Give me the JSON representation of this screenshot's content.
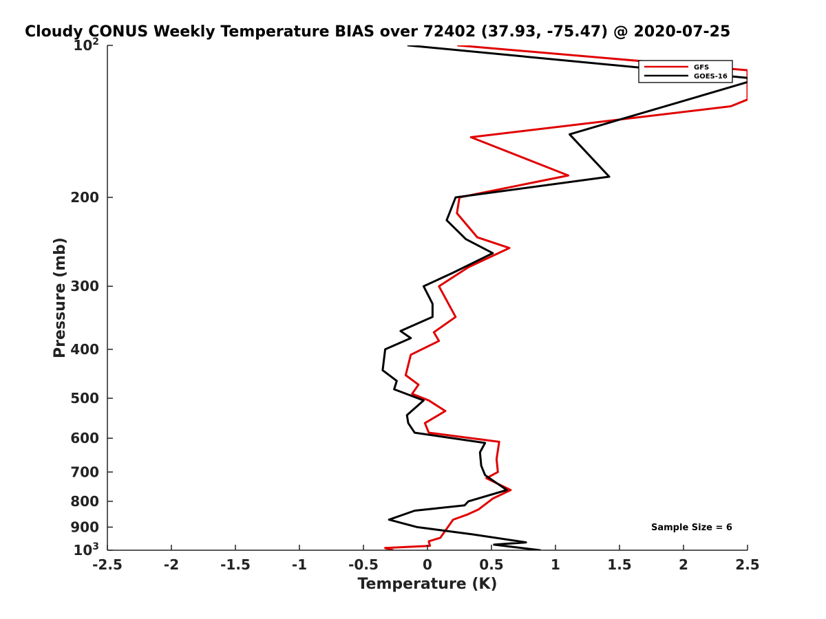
{
  "chart_data": {
    "type": "line",
    "title": "Cloudy CONUS Weekly Temperature BIAS over 72402 (37.93, -75.47) @ 2020-07-25",
    "xlabel": "Temperature (K)",
    "ylabel": "Pressure (mb)",
    "xlim": [
      -2.5,
      2.5
    ],
    "ylim": [
      100,
      1000
    ],
    "y_scale": "log",
    "y_reversed": true,
    "x_ticks": [
      "-2.5",
      "-2",
      "-1.5",
      "-1",
      "-0.5",
      "0",
      "0.5",
      "1",
      "1.5",
      "2",
      "2.5"
    ],
    "y_ticks": [
      {
        "value": 100,
        "base": "10",
        "exp": "2"
      },
      {
        "value": 200,
        "label": "200"
      },
      {
        "value": 300,
        "label": "300"
      },
      {
        "value": 400,
        "label": "400"
      },
      {
        "value": 500,
        "label": "500"
      },
      {
        "value": 600,
        "label": "600"
      },
      {
        "value": 700,
        "label": "700"
      },
      {
        "value": 800,
        "label": "800"
      },
      {
        "value": 900,
        "label": "900"
      },
      {
        "value": 1000,
        "base": "10",
        "exp": "3"
      }
    ],
    "legend_position": "top-right",
    "annotation": "Sample Size = 6",
    "series": [
      {
        "name": "GFS",
        "color": "#e00000",
        "points": [
          [
            0.24,
            100
          ],
          [
            2.5,
            112
          ],
          [
            2.5,
            128
          ],
          [
            2.37,
            132
          ],
          [
            0.34,
            152
          ],
          [
            1.1,
            181
          ],
          [
            0.25,
            200
          ],
          [
            0.23,
            215
          ],
          [
            0.39,
            240
          ],
          [
            0.64,
            252
          ],
          [
            0.32,
            275
          ],
          [
            0.09,
            300
          ],
          [
            0.22,
            345
          ],
          [
            0.05,
            370
          ],
          [
            0.09,
            385
          ],
          [
            -0.13,
            410
          ],
          [
            -0.17,
            450
          ],
          [
            -0.07,
            470
          ],
          [
            -0.12,
            490
          ],
          [
            0.01,
            505
          ],
          [
            0.14,
            530
          ],
          [
            -0.02,
            560
          ],
          [
            0.01,
            585
          ],
          [
            0.56,
            610
          ],
          [
            0.54,
            660
          ],
          [
            0.55,
            700
          ],
          [
            0.46,
            720
          ],
          [
            0.65,
            760
          ],
          [
            0.51,
            790
          ],
          [
            0.4,
            830
          ],
          [
            0.31,
            850
          ],
          [
            0.2,
            870
          ],
          [
            0.1,
            945
          ],
          [
            0.01,
            960
          ],
          [
            0.02,
            980
          ],
          [
            -0.33,
            990
          ],
          [
            -0.27,
            1000
          ]
        ]
      },
      {
        "name": "GOES-16",
        "color": "#000000",
        "points": [
          [
            -0.15,
            100
          ],
          [
            2.5,
            116
          ],
          [
            2.51,
            118
          ],
          [
            1.11,
            150
          ],
          [
            1.42,
            182
          ],
          [
            0.22,
            200
          ],
          [
            0.15,
            222
          ],
          [
            0.3,
            242
          ],
          [
            0.51,
            258
          ],
          [
            0.2,
            282
          ],
          [
            -0.03,
            300
          ],
          [
            0.04,
            325
          ],
          [
            0.04,
            345
          ],
          [
            -0.21,
            368
          ],
          [
            -0.13,
            380
          ],
          [
            -0.33,
            400
          ],
          [
            -0.35,
            440
          ],
          [
            -0.24,
            462
          ],
          [
            -0.26,
            480
          ],
          [
            -0.03,
            505
          ],
          [
            -0.16,
            540
          ],
          [
            -0.15,
            560
          ],
          [
            -0.1,
            585
          ],
          [
            0.45,
            613
          ],
          [
            0.41,
            640
          ],
          [
            0.42,
            680
          ],
          [
            0.45,
            710
          ],
          [
            0.62,
            760
          ],
          [
            0.32,
            800
          ],
          [
            0.29,
            815
          ],
          [
            -0.1,
            835
          ],
          [
            -0.3,
            870
          ],
          [
            -0.08,
            900
          ],
          [
            0.35,
            930
          ],
          [
            0.77,
            965
          ],
          [
            0.52,
            975
          ],
          [
            0.88,
            1000
          ]
        ]
      }
    ]
  }
}
